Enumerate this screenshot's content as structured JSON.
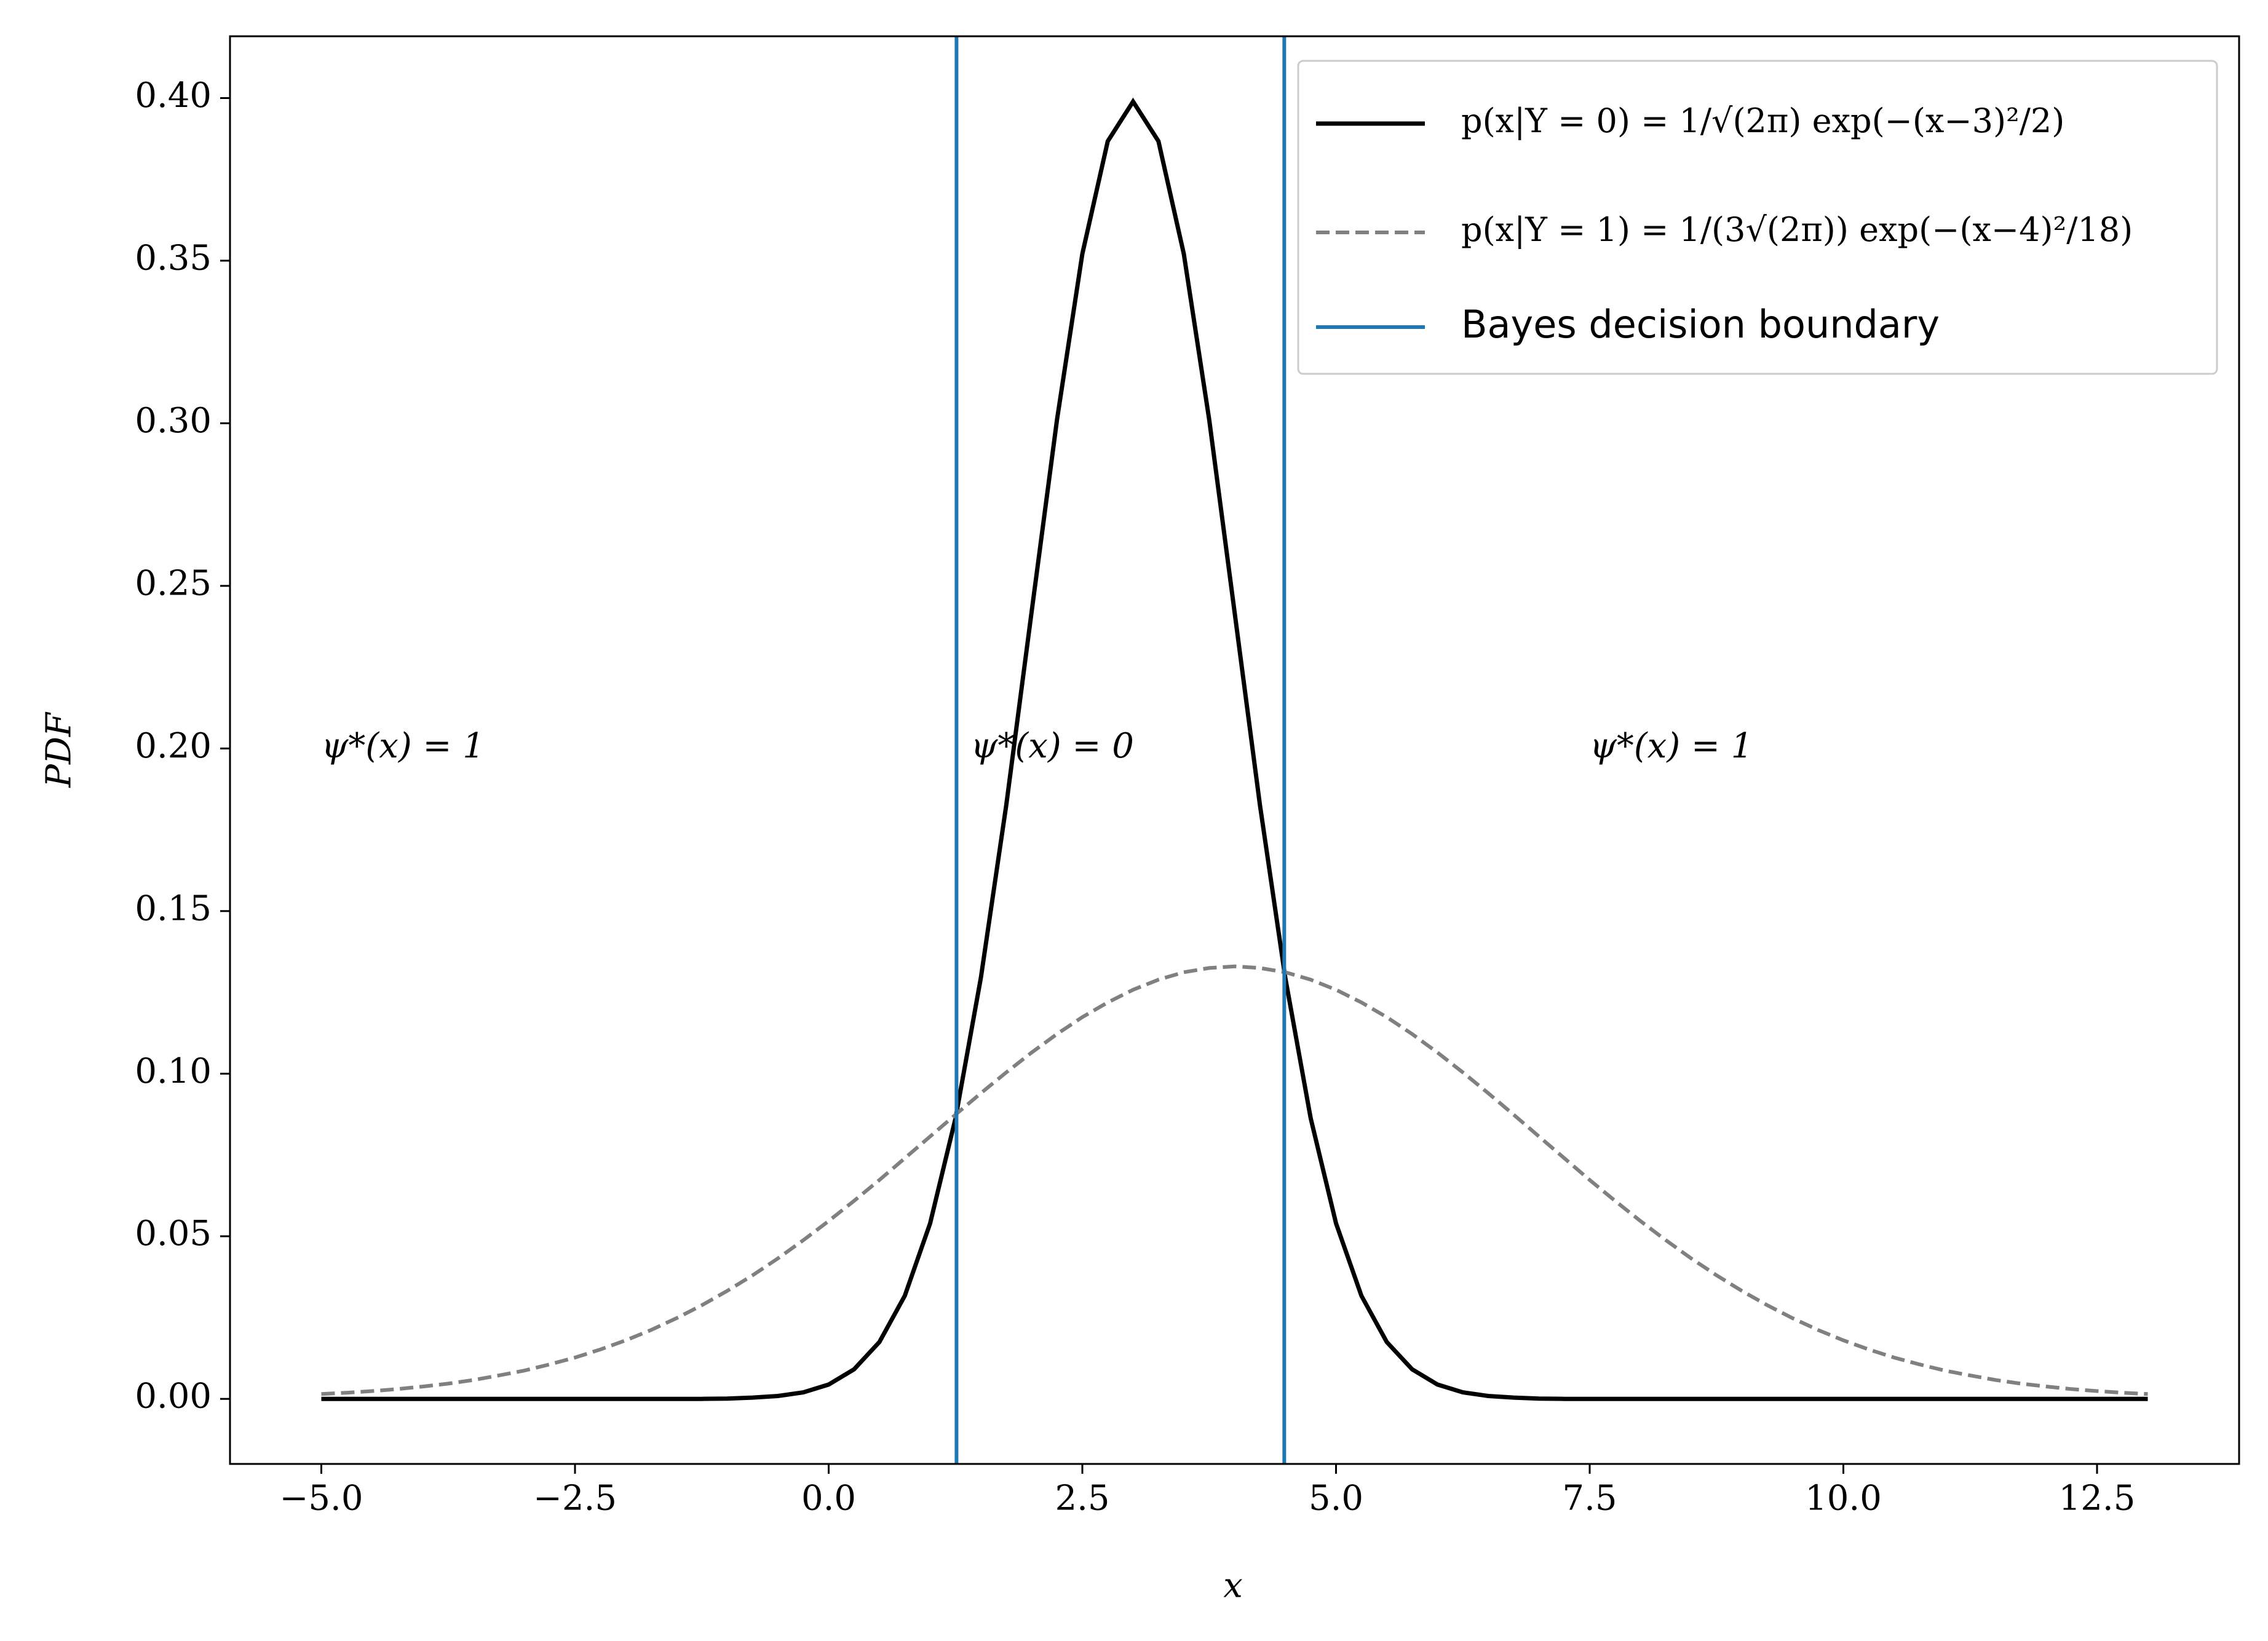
{
  "chart_data": {
    "type": "line",
    "xlabel": "x",
    "ylabel": "PDF",
    "x": [
      -5,
      -4.75,
      -4.5,
      -4.25,
      -4,
      -3.75,
      -3.5,
      -3.25,
      -3,
      -2.75,
      -2.5,
      -2.25,
      -2,
      -1.75,
      -1.5,
      -1.25,
      -1,
      -0.75,
      -0.5,
      -0.25,
      0,
      0.25,
      0.5,
      0.75,
      1,
      1.25,
      1.5,
      1.75,
      2,
      2.25,
      2.5,
      2.75,
      3,
      3.25,
      3.5,
      3.75,
      4,
      4.25,
      4.5,
      4.75,
      5,
      5.25,
      5.5,
      5.75,
      6,
      6.25,
      6.5,
      6.75,
      7,
      7.25,
      7.5,
      7.75,
      8,
      8.25,
      8.5,
      8.75,
      9,
      9.25,
      9.5,
      9.75,
      10,
      10.25,
      10.5,
      10.75,
      11,
      11.25,
      11.5,
      11.75,
      12,
      12.25,
      12.5,
      12.75,
      13
    ],
    "series": [
      {
        "name": "p(x|Y = 0) = 1/√(2π) exp(−(x−3)²/2)",
        "color": "#000000",
        "dash": false,
        "values": [
          0,
          0,
          0,
          0,
          0,
          0,
          0,
          0,
          0,
          0,
          0,
          0,
          0,
          0,
          0,
          0,
          0.0001,
          0.0004,
          0.0009,
          0.002,
          0.0044,
          0.0091,
          0.0175,
          0.0317,
          0.054,
          0.0863,
          0.1295,
          0.1826,
          0.242,
          0.3011,
          0.3521,
          0.3867,
          0.3989,
          0.3867,
          0.3521,
          0.3011,
          0.242,
          0.1826,
          0.1295,
          0.0863,
          0.054,
          0.0317,
          0.0175,
          0.0091,
          0.0044,
          0.002,
          0.0009,
          0.0004,
          0.0001,
          0,
          0,
          0,
          0,
          0,
          0,
          0,
          0,
          0,
          0,
          0,
          0,
          0,
          0,
          0,
          0,
          0,
          0,
          0,
          0,
          0,
          0,
          0,
          0
        ]
      },
      {
        "name": "p(x|Y = 1) = 1/(3√(2π)) exp(−(x−4)²/18)",
        "color": "#808080",
        "dash": true,
        "values": [
          0.0015,
          0.0019,
          0.0024,
          0.003,
          0.0038,
          0.0047,
          0.0058,
          0.0072,
          0.0087,
          0.0106,
          0.0127,
          0.0152,
          0.018,
          0.0212,
          0.0248,
          0.0288,
          0.0332,
          0.038,
          0.0432,
          0.0488,
          0.0547,
          0.0609,
          0.0673,
          0.074,
          0.0807,
          0.0874,
          0.094,
          0.1004,
          0.1065,
          0.1122,
          0.1174,
          0.1219,
          0.1258,
          0.1289,
          0.1312,
          0.1325,
          0.133,
          0.1325,
          0.1312,
          0.1289,
          0.1258,
          0.1219,
          0.1174,
          0.1122,
          0.1065,
          0.1004,
          0.094,
          0.0874,
          0.0807,
          0.074,
          0.0673,
          0.0609,
          0.0547,
          0.0488,
          0.0432,
          0.038,
          0.0332,
          0.0288,
          0.0248,
          0.0212,
          0.018,
          0.0152,
          0.0127,
          0.0106,
          0.0087,
          0.0072,
          0.0058,
          0.0047,
          0.0038,
          0.003,
          0.0024,
          0.0019,
          0.0015
        ]
      }
    ],
    "vlines": {
      "name": "Bayes decision boundary",
      "color": "#1f77b4",
      "x": [
        1.26,
        4.49
      ]
    },
    "annotations": [
      {
        "text": "ψ*(x) = 1",
        "x": -5,
        "y": 0.2
      },
      {
        "text": "ψ*(x) = 0",
        "x": 1.4,
        "y": 0.2
      },
      {
        "text": "ψ*(x) = 1",
        "x": 7.5,
        "y": 0.2
      }
    ],
    "xlim": [
      -5.9,
      13.9
    ],
    "ylim": [
      -0.02,
      0.419
    ],
    "xticks": [
      {
        "value": -5,
        "label": "−5.0"
      },
      {
        "value": -2.5,
        "label": "−2.5"
      },
      {
        "value": 0,
        "label": "0.0"
      },
      2.5,
      {
        "value": 5,
        "label": "5.0"
      },
      7.5,
      {
        "value": 10,
        "label": "10.0"
      },
      12.5
    ],
    "yticks": [
      {
        "value": 0,
        "label": "0.00"
      },
      0.05,
      {
        "value": 0.1,
        "label": "0.10"
      },
      0.15,
      {
        "value": 0.2,
        "label": "0.20"
      },
      0.25,
      {
        "value": 0.3,
        "label": "0.30"
      },
      0.35,
      {
        "value": 0.4,
        "label": "0.40"
      }
    ],
    "legend": "upper right",
    "grid": false
  }
}
